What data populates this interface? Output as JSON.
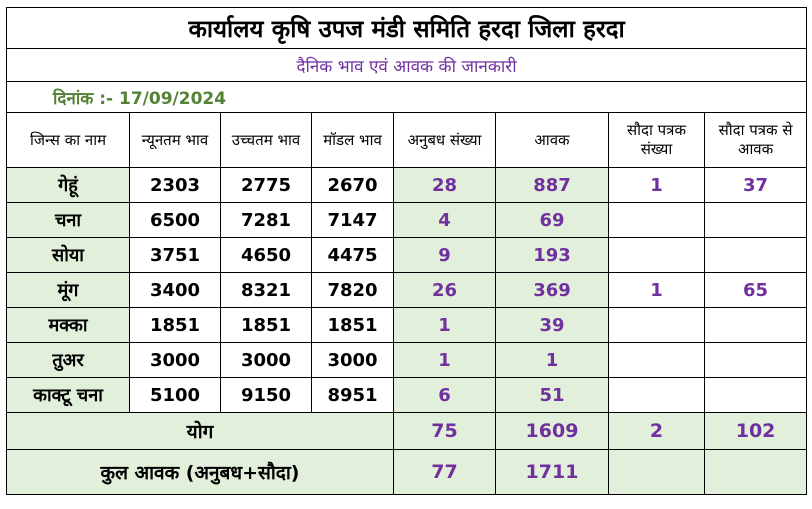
{
  "title": "कार्यालय कृषि उपज मंडी समिति हरदा जिला हरदा",
  "subtitle": "दैनिक भाव एवं आवक की जानकारी",
  "date_text": "दिनांक :- 17/09/2024",
  "columns": [
    "जिन्स का नाम",
    "न्यूनतम भाव",
    "उच्चतम भाव",
    "मॉडल भाव",
    "अनुबध संख्या",
    "आवक",
    "सौदा पत्रक संख्या",
    "सौदा पत्रक से आवक"
  ],
  "rows": [
    {
      "name": "गेहूं",
      "min": "2303",
      "max": "2775",
      "model": "2670",
      "anubandh": "28",
      "aavak": "887",
      "sauda_sankhya": "1",
      "sauda_aavak": "37"
    },
    {
      "name": "चना",
      "min": "6500",
      "max": "7281",
      "model": "7147",
      "anubandh": "4",
      "aavak": "69",
      "sauda_sankhya": "",
      "sauda_aavak": ""
    },
    {
      "name": "सोया",
      "min": "3751",
      "max": "4650",
      "model": "4475",
      "anubandh": "9",
      "aavak": "193",
      "sauda_sankhya": "",
      "sauda_aavak": ""
    },
    {
      "name": "मूंग",
      "min": "3400",
      "max": "8321",
      "model": "7820",
      "anubandh": "26",
      "aavak": "369",
      "sauda_sankhya": "1",
      "sauda_aavak": "65"
    },
    {
      "name": "मक्का",
      "min": "1851",
      "max": "1851",
      "model": "1851",
      "anubandh": "1",
      "aavak": "39",
      "sauda_sankhya": "",
      "sauda_aavak": ""
    },
    {
      "name": "तुअर",
      "min": "3000",
      "max": "3000",
      "model": "3000",
      "anubandh": "1",
      "aavak": "1",
      "sauda_sankhya": "",
      "sauda_aavak": ""
    },
    {
      "name": "काक्टू चना",
      "min": "5100",
      "max": "9150",
      "model": "8951",
      "anubandh": "6",
      "aavak": "51",
      "sauda_sankhya": "",
      "sauda_aavak": ""
    }
  ],
  "total": {
    "label": "योग",
    "anubandh": "75",
    "aavak": "1609",
    "sauda_sankhya": "2",
    "sauda_aavak": "102"
  },
  "kul_aavak": {
    "label": "कुल आवक (अनुबध+सौदा)",
    "anubandh": "77",
    "aavak": "1711"
  },
  "colors": {
    "shade": "#e2efda",
    "purple": "#7030a0",
    "green": "#548235"
  }
}
